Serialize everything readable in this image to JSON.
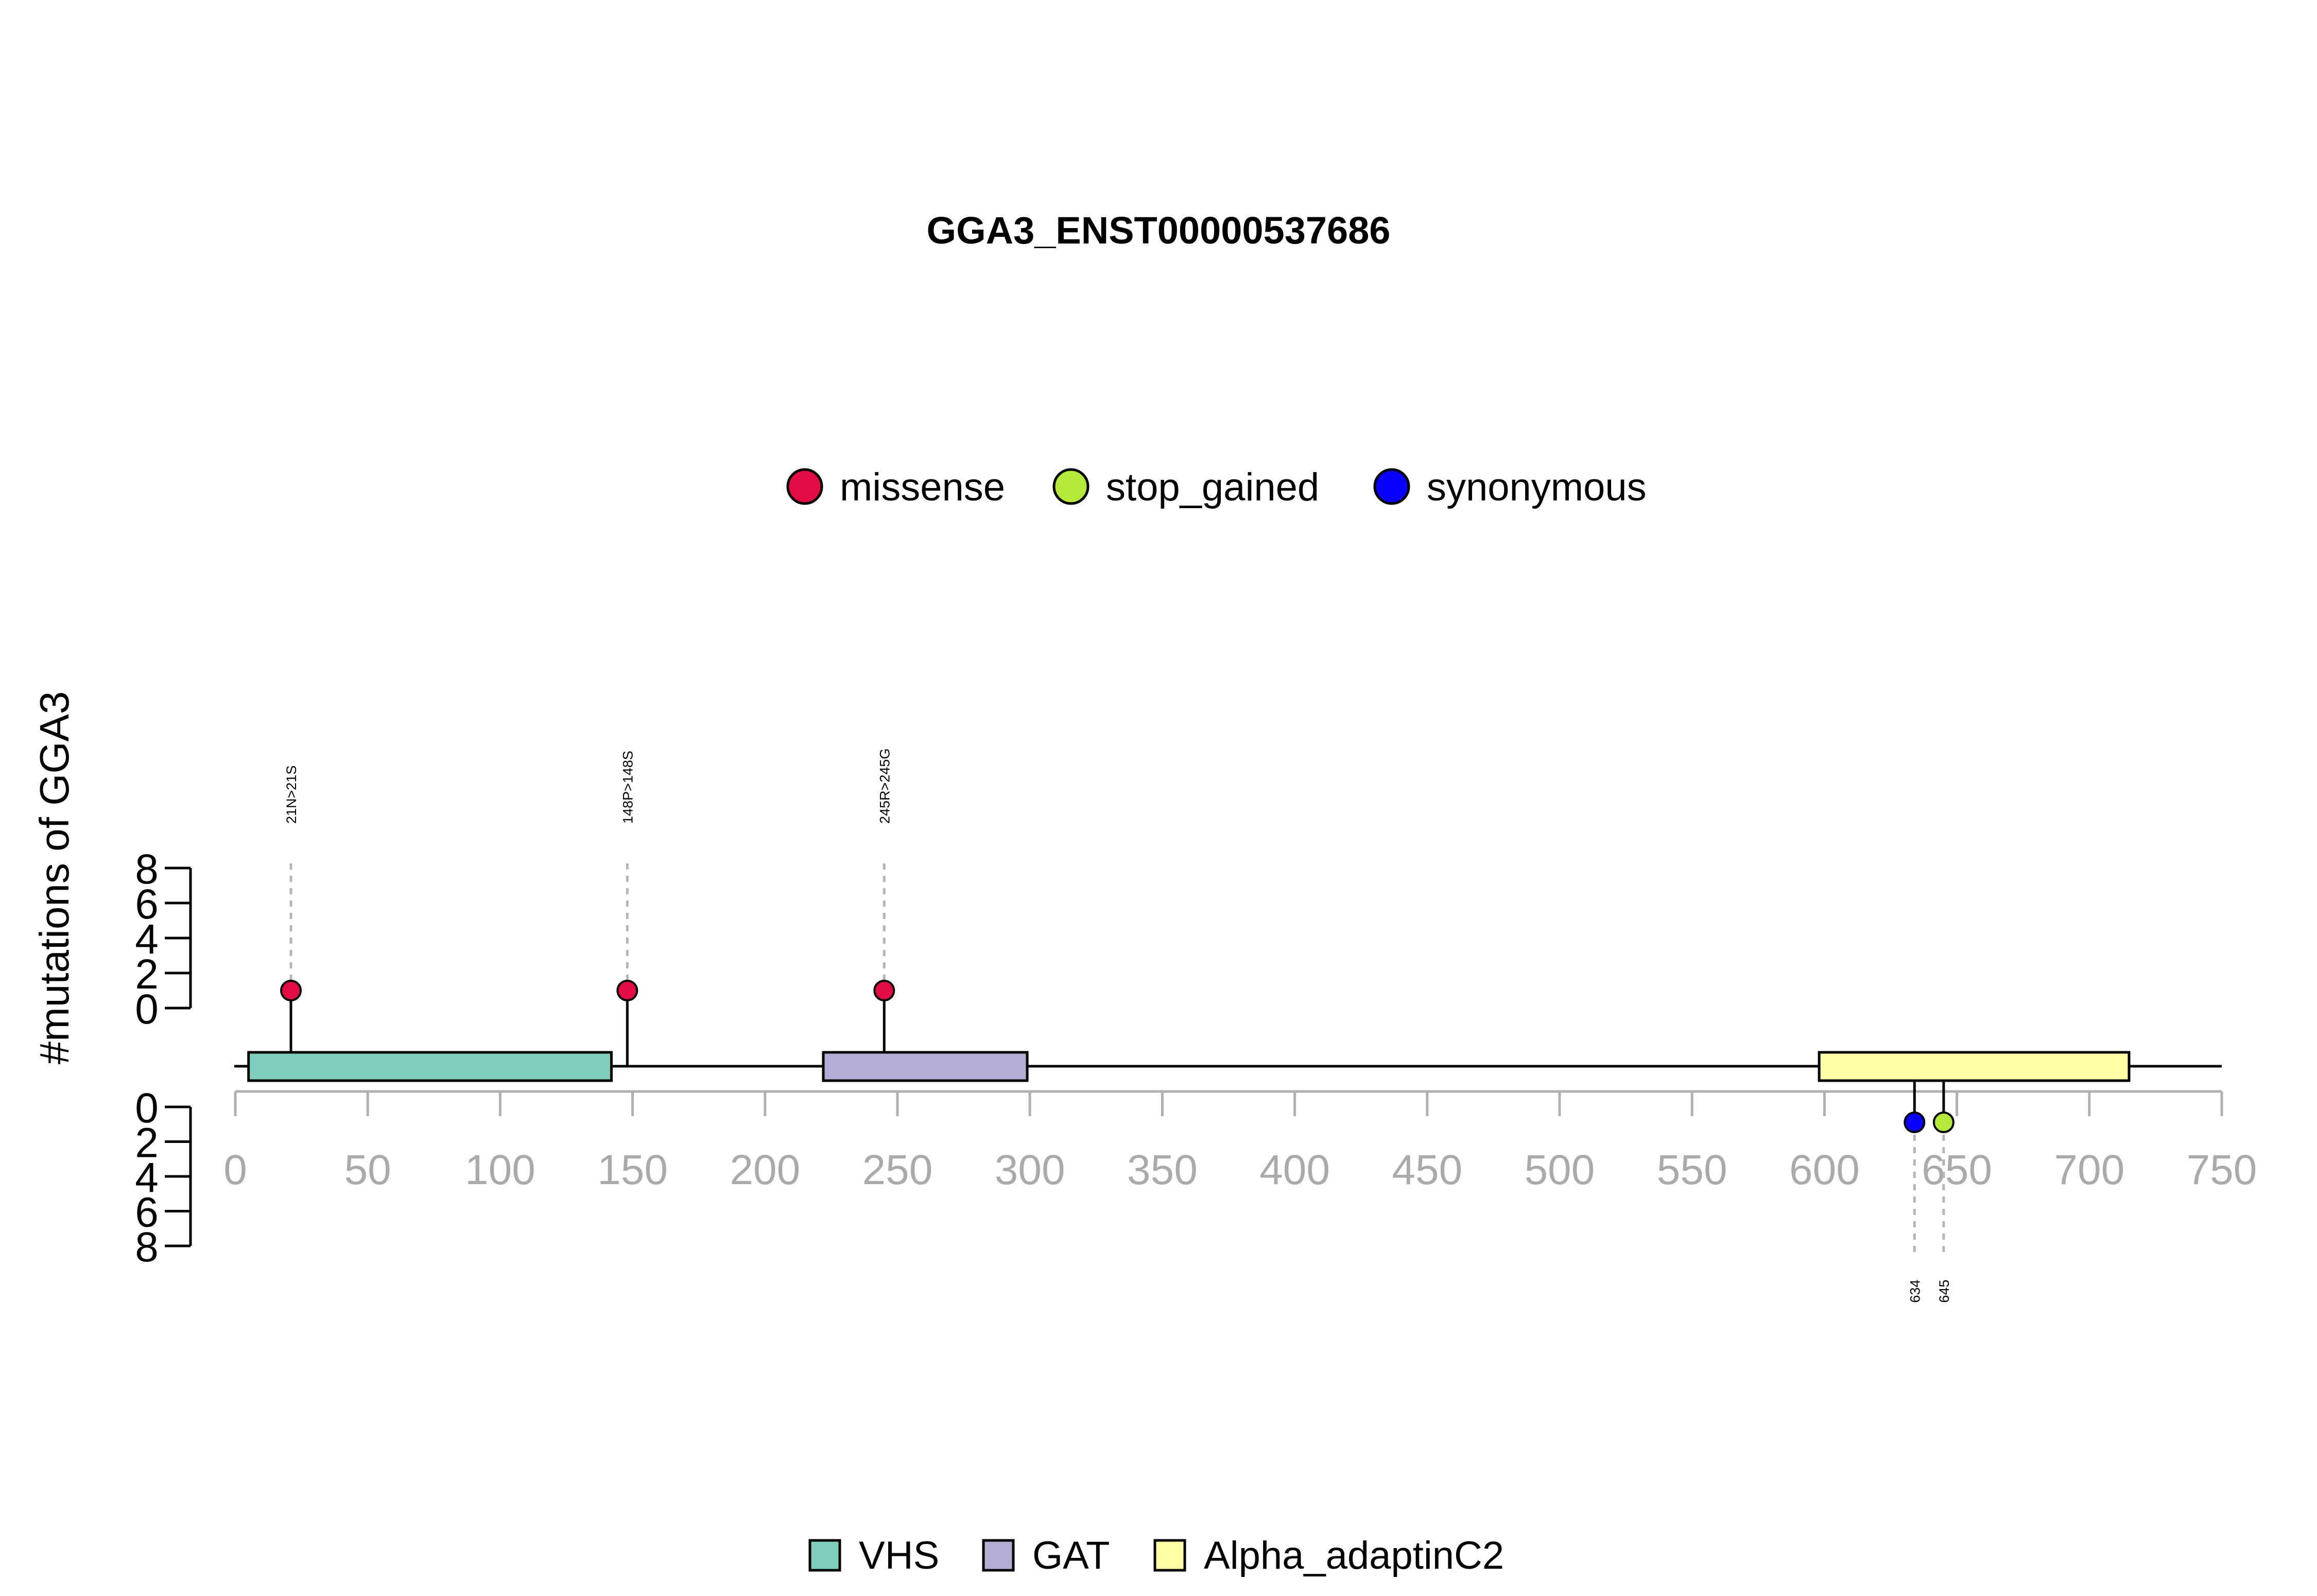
{
  "chart_data": {
    "type": "lollipop",
    "title": "GGA3_ENST00000537686",
    "ylabel": "#mutations of GGA3",
    "xlim": [
      0,
      750
    ],
    "x_ticks": [
      0,
      50,
      100,
      150,
      200,
      250,
      300,
      350,
      400,
      450,
      500,
      550,
      600,
      650,
      700,
      750
    ],
    "x_tick_labels": [
      "0",
      "50",
      "100",
      "150",
      "200",
      "250",
      "300",
      "350",
      "400",
      "450",
      "500",
      "550",
      "600",
      "650",
      "700",
      "750"
    ],
    "y_ticks": [
      0,
      2,
      4,
      6,
      8
    ],
    "y_tick_labels": [
      "0",
      "2",
      "4",
      "6",
      "8"
    ],
    "ylim": [
      0,
      8
    ],
    "mutation_types": [
      {
        "name": "missense",
        "color": "#e30b44"
      },
      {
        "name": "stop_gained",
        "color": "#b3ea3a"
      },
      {
        "name": "synonymous",
        "color": "#0a00ff"
      }
    ],
    "domains": [
      {
        "name": "VHS",
        "start": 5,
        "end": 142,
        "color": "#7fcdbb"
      },
      {
        "name": "GAT",
        "start": 222,
        "end": 299,
        "color": "#b3aed4"
      },
      {
        "name": "Alpha_adaptinC2",
        "start": 598,
        "end": 715,
        "color": "#ffffa8"
      }
    ],
    "mutations": [
      {
        "position": 21,
        "label": "21N>21S",
        "type": "missense",
        "count": 1,
        "track": "top"
      },
      {
        "position": 148,
        "label": "148P>148S",
        "type": "missense",
        "count": 1,
        "track": "top"
      },
      {
        "position": 245,
        "label": "245R>245G",
        "type": "missense",
        "count": 1,
        "track": "top"
      },
      {
        "position": 634,
        "label": "634",
        "type": "synonymous",
        "count": 1,
        "track": "bottom"
      },
      {
        "position": 645,
        "label": "645",
        "type": "stop_gained",
        "count": 1,
        "track": "bottom"
      }
    ],
    "legend_top_position": "top-center",
    "legend_bottom_position": "bottom-center",
    "grid": false
  }
}
